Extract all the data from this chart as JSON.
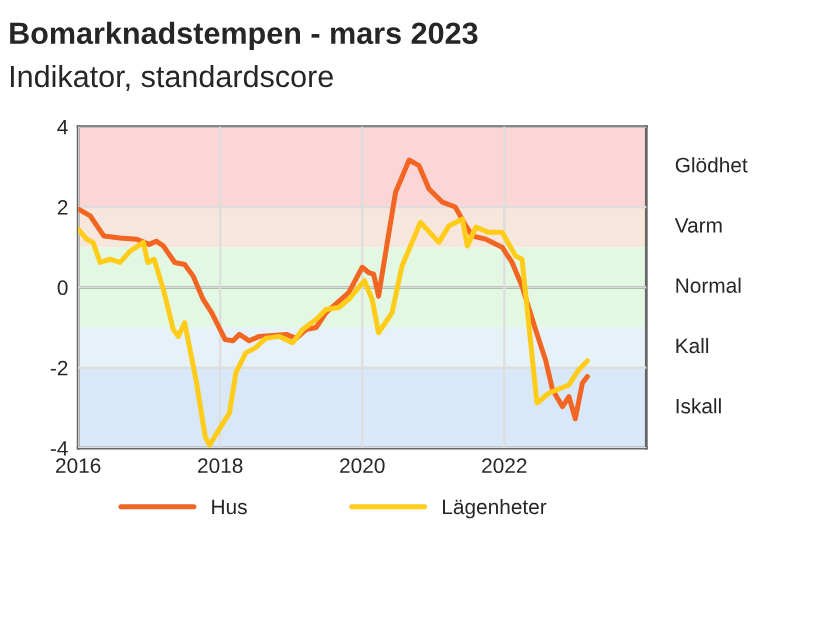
{
  "chart_data": {
    "type": "line",
    "title": "Bomarknadstempen - mars 2023",
    "subtitle": "Indikator, standardscore",
    "xlim": [
      2016,
      2024
    ],
    "xticks": [
      2016,
      2018,
      2020,
      2022
    ],
    "ylim": [
      -4,
      4
    ],
    "yticks": [
      -4,
      -2,
      0,
      2,
      4
    ],
    "grid": true,
    "legend": "bottom",
    "line_style": "solid",
    "marker": "none",
    "bands": [
      {
        "axis": "y",
        "from": 2,
        "to": 4,
        "label": "Glödhet",
        "color": "#fcd6d6"
      },
      {
        "axis": "y",
        "from": 1,
        "to": 2,
        "label": "Varm",
        "color": "#f6e6dc"
      },
      {
        "axis": "y",
        "from": -1,
        "to": 1,
        "label": "Normal",
        "color": "#e2f8e2"
      },
      {
        "axis": "y",
        "from": -2,
        "to": -1,
        "label": "Kall",
        "color": "#e6f2f8"
      },
      {
        "axis": "y",
        "from": -4,
        "to": -2,
        "label": "Iskall",
        "color": "#d8e8f8"
      }
    ],
    "ref_lines": [
      {
        "axis": "y",
        "value": 0,
        "color": "#5f7f5f"
      }
    ],
    "series": [
      {
        "name": "Hus",
        "color": "#f26522",
        "x": [
          2016.0,
          2016.17,
          2016.36,
          2016.59,
          2016.82,
          2017.0,
          2017.1,
          2017.2,
          2017.36,
          2017.5,
          2017.62,
          2017.76,
          2017.88,
          2018.07,
          2018.18,
          2018.27,
          2018.41,
          2018.55,
          2018.93,
          2019.07,
          2019.21,
          2019.35,
          2019.49,
          2019.67,
          2019.81,
          2020.0,
          2020.09,
          2020.16,
          2020.23,
          2020.33,
          2020.47,
          2020.66,
          2020.8,
          2020.94,
          2021.13,
          2021.31,
          2021.46,
          2021.55,
          2021.74,
          2021.97,
          2022.11,
          2022.25,
          2022.44,
          2022.58,
          2022.68,
          2022.82,
          2022.91,
          2023.0,
          2023.1,
          2023.17
        ],
        "values": [
          1.95,
          1.78,
          1.28,
          1.23,
          1.2,
          1.07,
          1.15,
          1.03,
          0.62,
          0.57,
          0.28,
          -0.3,
          -0.63,
          -1.3,
          -1.33,
          -1.17,
          -1.33,
          -1.22,
          -1.17,
          -1.27,
          -1.05,
          -1.0,
          -0.63,
          -0.35,
          -0.13,
          0.5,
          0.37,
          0.33,
          -0.22,
          0.87,
          2.37,
          3.17,
          3.03,
          2.45,
          2.12,
          2.0,
          1.53,
          1.28,
          1.2,
          1.0,
          0.62,
          0.03,
          -1.05,
          -1.8,
          -2.55,
          -2.97,
          -2.72,
          -3.27,
          -2.38,
          -2.22
        ]
      },
      {
        "name": "Lägenheter",
        "color": "#ffcc1a",
        "x": [
          2016.0,
          2016.12,
          2016.21,
          2016.31,
          2016.45,
          2016.59,
          2016.73,
          2016.92,
          2016.98,
          2017.07,
          2017.2,
          2017.34,
          2017.41,
          2017.5,
          2017.66,
          2017.79,
          2017.85,
          2018.04,
          2018.13,
          2018.22,
          2018.36,
          2018.5,
          2018.64,
          2018.83,
          2019.02,
          2019.16,
          2019.35,
          2019.49,
          2019.67,
          2019.81,
          2020.03,
          2020.14,
          2020.23,
          2020.42,
          2020.56,
          2020.82,
          2021.08,
          2021.22,
          2021.41,
          2021.48,
          2021.6,
          2021.78,
          2021.97,
          2022.16,
          2022.25,
          2022.46,
          2022.63,
          2022.91,
          2023.05,
          2023.17
        ],
        "values": [
          1.45,
          1.2,
          1.12,
          0.62,
          0.7,
          0.62,
          0.9,
          1.12,
          0.62,
          0.7,
          -0.05,
          -1.05,
          -1.22,
          -0.88,
          -2.3,
          -3.72,
          -3.93,
          -3.38,
          -3.13,
          -2.13,
          -1.63,
          -1.5,
          -1.27,
          -1.22,
          -1.38,
          -1.05,
          -0.8,
          -0.55,
          -0.5,
          -0.3,
          0.17,
          -0.3,
          -1.13,
          -0.63,
          0.53,
          1.62,
          1.12,
          1.53,
          1.7,
          1.03,
          1.5,
          1.37,
          1.37,
          0.78,
          0.7,
          -2.88,
          -2.63,
          -2.43,
          -2.05,
          -1.83
        ]
      }
    ]
  }
}
